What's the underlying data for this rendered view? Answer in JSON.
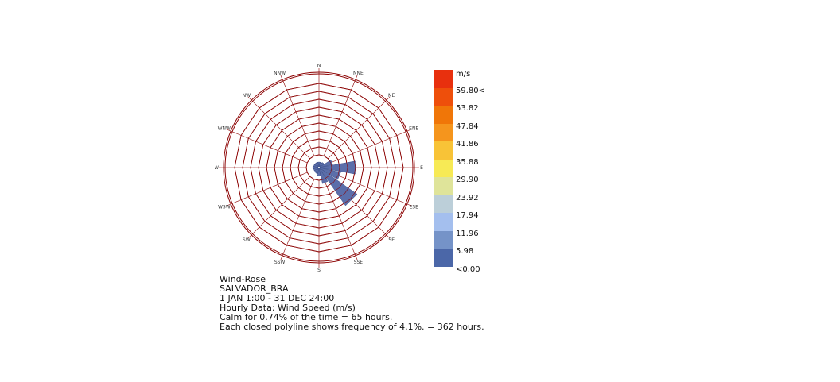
{
  "chart_data": {
    "type": "wind-rose",
    "directions": [
      "N",
      "NNE",
      "NE",
      "ENE",
      "E",
      "ESE",
      "SE",
      "SSE",
      "S",
      "SSW",
      "SW",
      "WSW",
      "W",
      "WNW",
      "NW",
      "NNW"
    ],
    "frequency_percent": [
      0.4,
      0.4,
      0.8,
      4.8,
      16.5,
      9.0,
      21.5,
      6.0,
      2.0,
      0.8,
      0.4,
      0.4,
      0.8,
      0.4,
      0.4,
      0.4
    ],
    "ring_step_percent": 4.1,
    "ring_count": 10,
    "legend": {
      "unit": "m/s",
      "labels": [
        "59.80<",
        "53.82",
        "47.84",
        "41.86",
        "35.88",
        "29.90",
        "23.92",
        "17.94",
        "11.96",
        "5.98",
        "<0.00"
      ],
      "colors": [
        "#e8300e",
        "#ee4f0b",
        "#f07608",
        "#f5951d",
        "#f8c337",
        "#f7ea55",
        "#dfe49a",
        "#bccfd9",
        "#a4bfee",
        "#7593c8",
        "#4b67a8"
      ]
    },
    "bar_color": "#5b6eaa",
    "ring_color": "#8b0000"
  },
  "caption": {
    "line1": "Wind-Rose",
    "line2": "SALVADOR_BRA",
    "line3": "1 JAN 1:00 - 31 DEC 24:00",
    "line4": "Hourly Data: Wind Speed (m/s)",
    "line5": "Calm for 0.74% of the time = 65 hours.",
    "line6": "Each closed polyline shows frequency of 4.1%. = 362 hours."
  }
}
